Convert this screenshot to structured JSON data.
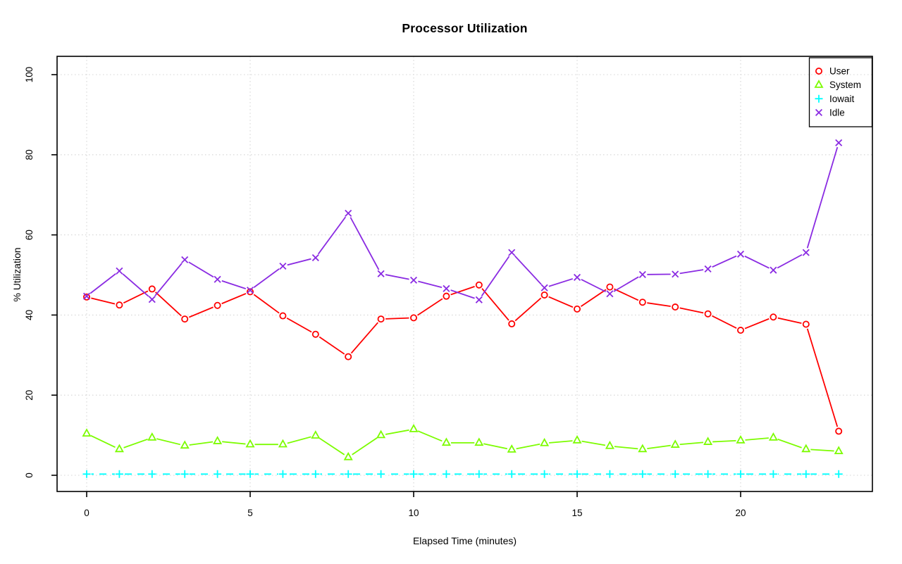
{
  "chart_data": {
    "type": "line",
    "title": "Processor Utilization",
    "xlabel": "Elapsed Time (minutes)",
    "ylabel": "% Utilization",
    "x": [
      0,
      1,
      2,
      3,
      4,
      5,
      6,
      7,
      8,
      9,
      10,
      11,
      12,
      13,
      14,
      15,
      16,
      17,
      18,
      19,
      20,
      21,
      22,
      23
    ],
    "series": [
      {
        "name": "User",
        "color": "#ff0000",
        "marker": "circle",
        "line": "solid",
        "values": [
          44.5,
          42.5,
          46.5,
          39.0,
          42.4,
          45.8,
          39.8,
          35.2,
          29.6,
          39.0,
          39.3,
          44.7,
          47.5,
          37.8,
          45.0,
          41.5,
          47.0,
          43.2,
          42.0,
          40.3,
          36.2,
          39.5,
          37.7,
          11.0
        ]
      },
      {
        "name": "System",
        "color": "#7cfc00",
        "marker": "triangle",
        "line": "solid",
        "values": [
          10.4,
          6.5,
          9.4,
          7.4,
          8.5,
          7.7,
          7.7,
          9.9,
          4.5,
          10.0,
          11.5,
          8.1,
          8.1,
          6.4,
          8.0,
          8.7,
          7.3,
          6.5,
          7.6,
          8.3,
          8.7,
          9.4,
          6.5,
          6.0
        ]
      },
      {
        "name": "Iowait",
        "color": "#00ffff",
        "marker": "plus",
        "line": "dashed",
        "values": [
          0.3,
          0.3,
          0.3,
          0.3,
          0.3,
          0.3,
          0.3,
          0.3,
          0.3,
          0.3,
          0.3,
          0.3,
          0.3,
          0.3,
          0.3,
          0.3,
          0.3,
          0.3,
          0.3,
          0.3,
          0.3,
          0.3,
          0.3,
          0.3
        ]
      },
      {
        "name": "Idle",
        "color": "#8a2be2",
        "marker": "x",
        "line": "solid",
        "values": [
          44.7,
          51.0,
          43.9,
          53.8,
          48.9,
          46.2,
          52.2,
          54.3,
          65.4,
          50.3,
          48.7,
          46.6,
          43.8,
          55.6,
          46.8,
          49.4,
          45.3,
          50.1,
          50.2,
          51.5,
          55.2,
          51.2,
          55.6,
          83.0
        ]
      }
    ],
    "xticks": [
      0,
      5,
      10,
      15,
      20
    ],
    "yticks": [
      0,
      20,
      40,
      60,
      80,
      100
    ],
    "xlim": [
      0,
      23
    ],
    "ylim": [
      0,
      100
    ],
    "grid": true,
    "grid_color": "#d4d4d4",
    "axis_color": "#000000",
    "legend_position": "top-right"
  }
}
